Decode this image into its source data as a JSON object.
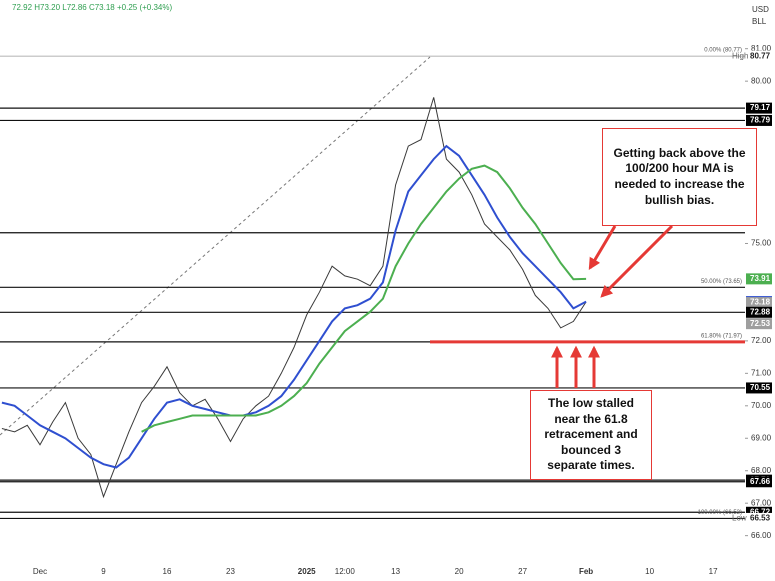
{
  "chart_data": {
    "type": "line",
    "header": "72.92 H73.20 L72.86 C73.18 +0.25 (+0.34%)",
    "currency": "USD",
    "unit": "BLL",
    "categories": [
      null,
      null,
      null,
      "Dec",
      null,
      null,
      null,
      null,
      "9",
      null,
      null,
      null,
      null,
      "16",
      null,
      null,
      null,
      null,
      "23",
      null,
      null,
      null,
      null,
      null,
      "2025",
      null,
      null,
      "12:00",
      null,
      null,
      null,
      "13",
      null,
      null,
      null,
      null,
      "20",
      null,
      null,
      null,
      null,
      "27",
      null,
      null,
      null,
      null,
      "Feb",
      null,
      null,
      null,
      null,
      "10",
      null,
      null,
      null,
      null,
      "17",
      null,
      null
    ],
    "bold_categories": [
      "2025",
      "Feb"
    ],
    "series": [
      {
        "color": "#3a3a3a",
        "values": [
          69.3,
          69.2,
          69.4,
          68.8,
          69.5,
          70.1,
          69.0,
          68.5,
          67.2,
          68.2,
          69.2,
          70.1,
          70.6,
          71.2,
          70.4,
          70.0,
          70.2,
          69.6,
          68.9,
          69.6,
          70.0,
          70.3,
          71.0,
          71.8,
          72.8,
          73.5,
          74.3,
          74.0,
          73.9,
          73.7,
          74.3,
          76.8,
          78.0,
          78.2,
          79.5,
          77.6,
          77.2,
          76.5,
          75.6,
          75.2,
          74.8,
          74.2,
          73.4,
          73.0,
          72.4,
          72.6,
          73.2,
          null,
          null,
          null,
          null,
          null,
          null,
          null,
          null,
          null,
          null,
          null,
          null
        ]
      },
      {
        "color": "#2f4fd0",
        "values": [
          70.1,
          70.0,
          69.7,
          69.4,
          69.2,
          69.0,
          68.7,
          68.4,
          68.2,
          68.1,
          68.4,
          69.0,
          69.6,
          70.1,
          70.2,
          70.0,
          69.9,
          69.8,
          69.7,
          69.7,
          69.8,
          70.0,
          70.3,
          70.8,
          71.4,
          72.0,
          72.6,
          73.0,
          73.1,
          73.3,
          73.8,
          75.4,
          76.6,
          77.1,
          77.6,
          78.0,
          77.7,
          77.1,
          76.5,
          75.8,
          75.2,
          74.7,
          74.3,
          73.9,
          73.5,
          73.0,
          73.21,
          null,
          null,
          null,
          null,
          null,
          null,
          null,
          null,
          null,
          null,
          null,
          null
        ]
      },
      {
        "color": "#4caf50",
        "values": [
          null,
          null,
          null,
          null,
          null,
          null,
          null,
          null,
          null,
          null,
          null,
          69.2,
          69.4,
          69.5,
          69.6,
          69.7,
          69.7,
          69.7,
          69.7,
          69.7,
          69.7,
          69.8,
          70.0,
          70.3,
          70.7,
          71.3,
          71.8,
          72.3,
          72.6,
          72.9,
          73.3,
          74.3,
          75.0,
          75.6,
          76.1,
          76.6,
          77.0,
          77.3,
          77.4,
          77.2,
          76.7,
          76.1,
          75.6,
          75.0,
          74.4,
          73.9,
          73.91,
          null,
          null,
          null,
          null,
          null,
          null,
          null,
          null,
          null,
          null,
          null,
          null
        ]
      }
    ],
    "ylim": [
      65.25,
      82.5
    ],
    "yticks": [
      {
        "value": 66,
        "label": "66.00"
      },
      {
        "value": 67,
        "label": "67.00"
      },
      {
        "value": 68,
        "label": "68.00"
      },
      {
        "value": 69,
        "label": "69.00"
      },
      {
        "value": 70,
        "label": "70.00"
      },
      {
        "value": 71,
        "label": "71.00"
      },
      {
        "value": 72,
        "label": "72.00"
      },
      {
        "value": 75,
        "label": "75.00"
      },
      {
        "value": 80,
        "label": "80.00"
      },
      {
        "value": 81,
        "label": "81.00"
      }
    ],
    "levels": [
      80.77,
      79.17,
      78.79,
      75.33,
      73.65,
      72.88,
      71.97,
      70.55,
      67.71,
      67.66,
      66.72,
      66.53
    ],
    "support": {
      "value": 71.97,
      "color": "#e53935"
    },
    "fib_labels": [
      {
        "value": 80.77,
        "label": "0.00% (80.77)"
      },
      {
        "value": 73.65,
        "label": "50.00% (73.65)"
      },
      {
        "value": 71.97,
        "label": "61.80% (71.97)"
      },
      {
        "value": 66.53,
        "label": "100.00% (66.53)"
      }
    ],
    "price_labels": [
      {
        "value": 80.77,
        "color": "#ffffff",
        "tag": "High"
      },
      {
        "value": 79.17,
        "color": "#000000"
      },
      {
        "value": 78.79,
        "color": "#000000"
      },
      {
        "value": 73.91,
        "color": "#4caf50"
      },
      {
        "value": 73.21,
        "color": "#2f4fd0"
      },
      {
        "value": 73.18,
        "color": "#9e9e9e"
      },
      {
        "value": 72.88,
        "color": "#000000"
      },
      {
        "value": 72.53,
        "color": "#9e9e9e"
      },
      {
        "value": 70.55,
        "color": "#000000"
      },
      {
        "value": 67.71,
        "color": "#000000"
      },
      {
        "value": 67.66,
        "color": "#000000"
      },
      {
        "value": 66.72,
        "color": "#000000"
      },
      {
        "value": 66.53,
        "color": "#ffffff",
        "tag": "Low"
      }
    ],
    "annotations": [
      "Getting back above the 100/200 hour MA is needed to increase the bullish bias.",
      "The low stalled near the 61.8 retracement and bounced 3 separate times."
    ]
  }
}
